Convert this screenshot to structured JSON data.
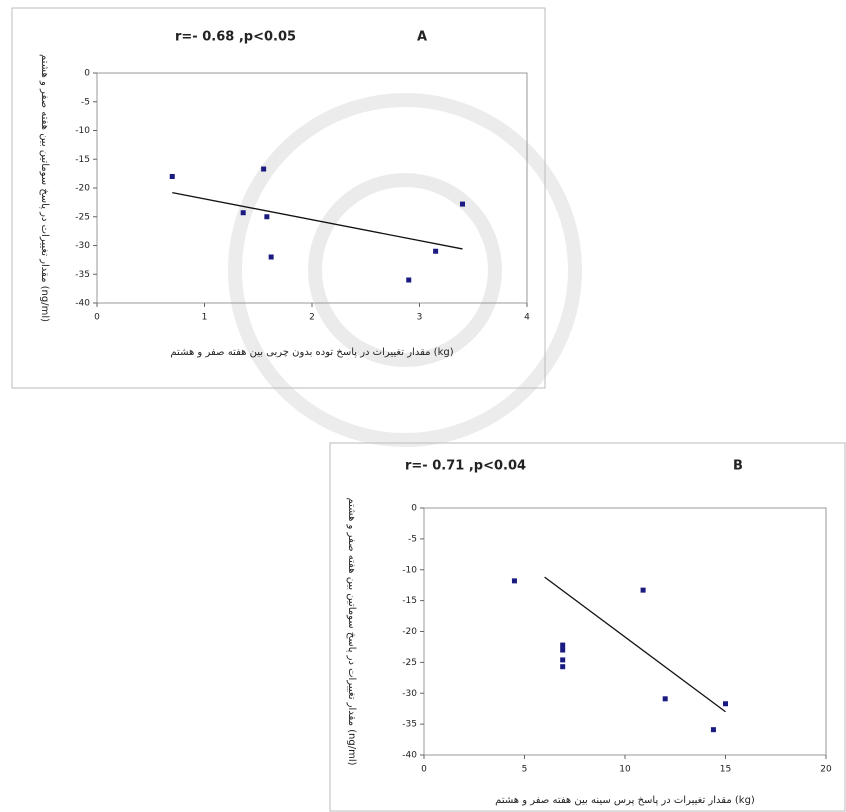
{
  "chart_data": [
    {
      "type": "scatter",
      "title": "r=- 0.68 ,p<0.05",
      "annotation": "A",
      "x_label": "مقدار تغییرات در پاسخ توده بدون چربی بین هفته صفر و هشتم (kg)",
      "y_label": "مقدار تغییرات در پاسخ سوماتین بین هفته صفر و هشتم (ng/ml)",
      "color": "#1a1a80",
      "x": [
        0.7,
        1.55,
        1.36,
        1.58,
        1.62,
        2.9,
        3.15,
        3.4
      ],
      "values": [
        -18,
        -16.7,
        -24.3,
        -25,
        -32,
        -36,
        -31,
        -22.8
      ],
      "trendline": {
        "x": [
          0.7,
          3.4
        ],
        "y": [
          -20.8,
          -30.6
        ]
      },
      "xlim": [
        0,
        4
      ],
      "xticks": [
        0,
        1,
        2,
        3,
        4
      ],
      "ylim": [
        -40,
        0
      ],
      "yticks": [
        0,
        -5,
        -10,
        -15,
        -20,
        -25,
        -30,
        -35,
        -40
      ]
    },
    {
      "type": "scatter",
      "title": "r=- 0.71 ,p<0.04",
      "annotation": "B",
      "x_label": "مقدار تغییرات در پاسخ پرس سینه بین هفته صفر و هشتم (kg)",
      "y_label": "مقدار تغییرات در پاسخ سوماتین بین هفته صفر و هشتم (ng/ml)",
      "color": "#1a1a80",
      "x": [
        4.5,
        6.9,
        6.9,
        6.9,
        6.9,
        10.9,
        12,
        14.4,
        15
      ],
      "values": [
        -11.8,
        -22.2,
        -23,
        -24.6,
        -25.7,
        -13.3,
        -30.9,
        -35.9,
        -31.7
      ],
      "trendline": {
        "x": [
          6,
          15
        ],
        "y": [
          -11.2,
          -33
        ]
      },
      "xlim": [
        0,
        20
      ],
      "xticks": [
        0,
        5,
        10,
        15,
        20
      ],
      "ylim": [
        -40,
        0
      ],
      "yticks": [
        0,
        -5,
        -10,
        -15,
        -20,
        -25,
        -30,
        -35,
        -40
      ]
    }
  ]
}
